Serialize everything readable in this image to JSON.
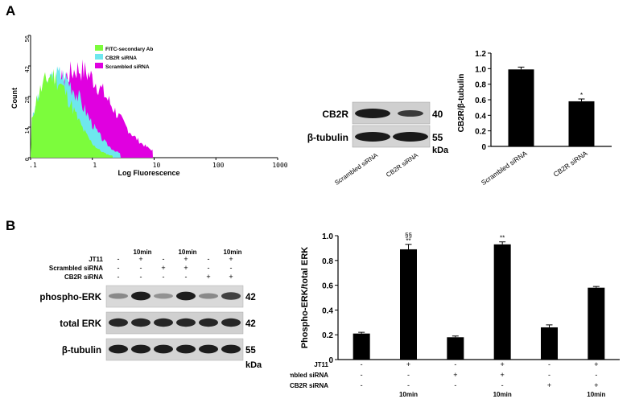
{
  "panel_a": {
    "letter": "A",
    "flow": {
      "y_label": "Count",
      "x_label": "Log Fluorescence",
      "y_ticks": [
        "0",
        "14",
        "28",
        "42",
        "56"
      ],
      "x_ticks": [
        ".1",
        "1",
        "10",
        "100",
        "1000"
      ],
      "legend": [
        {
          "label": "FITC-secondary Ab",
          "color": "#7CFC3C"
        },
        {
          "label": "CB2R siRNA",
          "color": "#6EE7EE"
        },
        {
          "label": "Scrambled siRNA",
          "color": "#E000E0"
        }
      ]
    },
    "blot": {
      "rows": [
        {
          "label": "CB2R",
          "kda": "40"
        },
        {
          "label": "β-tubulin",
          "kda": "55"
        }
      ],
      "kda_unit": "kDa",
      "lanes": [
        "Scrambled siRNA",
        "CB2R siRNA"
      ]
    }
  },
  "panel_b": {
    "letter": "B",
    "blot": {
      "conditions": [
        {
          "label": "JT11",
          "values": [
            "-",
            "+",
            "-",
            "+",
            "-",
            "+"
          ],
          "above": [
            "",
            "10min",
            "",
            "10min",
            "",
            "10min"
          ]
        },
        {
          "label": "Scrambled siRNA",
          "values": [
            "-",
            "-",
            "+",
            "+",
            "-",
            "-"
          ]
        },
        {
          "label": "CB2R siRNA",
          "values": [
            "-",
            "-",
            "-",
            "-",
            "+",
            "+"
          ]
        }
      ],
      "rows": [
        {
          "label": "phospho-ERK",
          "kda": "42"
        },
        {
          "label": "total ERK",
          "kda": "42"
        },
        {
          "label": "β-tubulin",
          "kda": "55"
        }
      ],
      "kda_unit": "kDa"
    }
  },
  "chart_data": [
    {
      "type": "bar",
      "categories": [
        "Scrambled siRNA",
        "CB2R siRNA"
      ],
      "values": [
        0.99,
        0.58
      ],
      "errors": [
        0.03,
        0.03
      ],
      "annotations": [
        "",
        "*"
      ],
      "ylabel": "CB2R/β-tubulin",
      "ylim": [
        0,
        1.2
      ],
      "yticks": [
        "0",
        "0.2",
        "0.4",
        "0.6",
        "0.8",
        "1.0",
        "1.2"
      ]
    },
    {
      "type": "bar",
      "values": [
        0.21,
        0.89,
        0.18,
        0.93,
        0.26,
        0.58
      ],
      "errors": [
        0.01,
        0.04,
        0.01,
        0.02,
        0.02,
        0.01
      ],
      "annotations": [
        [
          "",
          ""
        ],
        [
          "§§",
          "**"
        ],
        [
          "",
          ""
        ],
        [
          "",
          "**"
        ],
        [
          "",
          ""
        ],
        [
          "",
          ""
        ]
      ],
      "ylabel": "Phospho-ERK/total ERK",
      "ylim": [
        0,
        1.0
      ],
      "yticks": [
        "0",
        "0.2",
        "0.4",
        "0.6",
        "0.8",
        "1.0"
      ],
      "conditions": [
        {
          "label": "JT11",
          "values": [
            "-",
            "+",
            "-",
            "+",
            "-",
            "+"
          ]
        },
        {
          "label": "Scrambled siRNA",
          "values": [
            "-",
            "-",
            "+",
            "+",
            "-",
            "-"
          ]
        },
        {
          "label": "CB2R siRNA",
          "values": [
            "-",
            "-",
            "-",
            "-",
            "+",
            "+"
          ]
        }
      ],
      "time_labels": [
        "",
        "10min",
        "",
        "10min",
        "",
        "10min"
      ]
    }
  ]
}
